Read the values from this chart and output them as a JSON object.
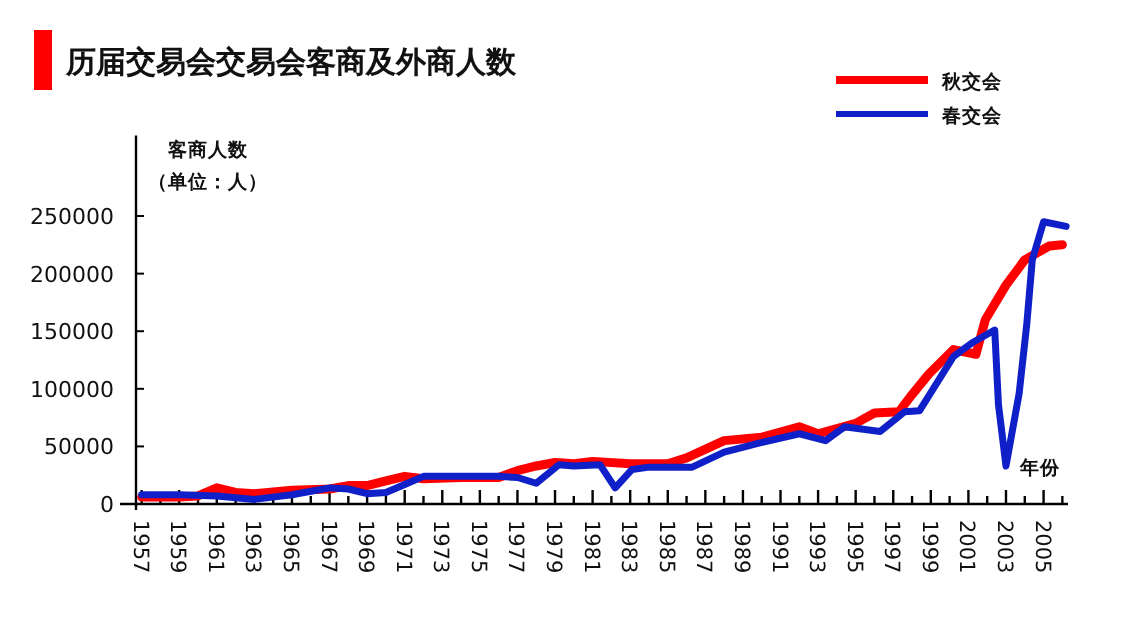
{
  "chart_data": {
    "type": "line",
    "title": "历届交易会交易会客商及外商人数",
    "xlabel": "年份",
    "ylabel": "客商人数",
    "annotations": [
      "（单位：人）"
    ],
    "xlim": [
      1956.7,
      2006.3
    ],
    "ylim": [
      0,
      320000
    ],
    "xticks": [
      {
        "value": 1957,
        "label": "1957"
      },
      {
        "value": 1958,
        "label": null
      },
      {
        "value": 1959,
        "label": "1959"
      },
      {
        "value": 1960,
        "label": null
      },
      {
        "value": 1961,
        "label": "1961"
      },
      {
        "value": 1962,
        "label": null
      },
      {
        "value": 1963,
        "label": "1963"
      },
      {
        "value": 1964,
        "label": null
      },
      {
        "value": 1965,
        "label": "1965"
      },
      {
        "value": 1966,
        "label": null
      },
      {
        "value": 1967,
        "label": "1967"
      },
      {
        "value": 1968,
        "label": null
      },
      {
        "value": 1969,
        "label": "1969"
      },
      {
        "value": 1970,
        "label": null
      },
      {
        "value": 1971,
        "label": "1971"
      },
      {
        "value": 1972,
        "label": null
      },
      {
        "value": 1973,
        "label": "1973"
      },
      {
        "value": 1974,
        "label": null
      },
      {
        "value": 1975,
        "label": "1975"
      },
      {
        "value": 1976,
        "label": null
      },
      {
        "value": 1977,
        "label": "1977"
      },
      {
        "value": 1978,
        "label": null
      },
      {
        "value": 1979,
        "label": "1979"
      },
      {
        "value": 1980,
        "label": null
      },
      {
        "value": 1981,
        "label": "1981"
      },
      {
        "value": 1982,
        "label": null
      },
      {
        "value": 1983,
        "label": "1983"
      },
      {
        "value": 1984,
        "label": null
      },
      {
        "value": 1985,
        "label": "1985"
      },
      {
        "value": 1986,
        "label": null
      },
      {
        "value": 1987,
        "label": "1987"
      },
      {
        "value": 1988,
        "label": null
      },
      {
        "value": 1989,
        "label": "1989"
      },
      {
        "value": 1990,
        "label": null
      },
      {
        "value": 1991,
        "label": "1991"
      },
      {
        "value": 1992,
        "label": null
      },
      {
        "value": 1993,
        "label": "1993"
      },
      {
        "value": 1994,
        "label": null
      },
      {
        "value": 1995,
        "label": "1995"
      },
      {
        "value": 1996,
        "label": null
      },
      {
        "value": 1997,
        "label": "1997"
      },
      {
        "value": 1998,
        "label": null
      },
      {
        "value": 1999,
        "label": "1999"
      },
      {
        "value": 2000,
        "label": null
      },
      {
        "value": 2001,
        "label": "2001"
      },
      {
        "value": 2002,
        "label": null
      },
      {
        "value": 2003,
        "label": "2003"
      },
      {
        "value": 2004,
        "label": null
      },
      {
        "value": 2005,
        "label": "2005"
      },
      {
        "value": 2006,
        "label": null
      }
    ],
    "yticks": [
      0,
      50000,
      100000,
      150000,
      200000,
      250000
    ],
    "legend": "top right",
    "grid": false,
    "marker": "none",
    "line_style": "solid",
    "series": [
      {
        "name": "秋交会",
        "color": "#ff0000",
        "x": [
          1957,
          1959,
          1960,
          1961,
          1962,
          1963,
          1965,
          1967,
          1968,
          1969,
          1970,
          1971,
          1972,
          1974,
          1976,
          1977,
          1978,
          1979,
          1980,
          1981,
          1983,
          1985,
          1986,
          1988,
          1990,
          1992,
          1993,
          1995,
          1996,
          1997.3,
          1998,
          1998.9,
          2000.2,
          2001.4,
          2001.9,
          2003,
          2004,
          2005.3,
          2006
        ],
        "values": [
          6000,
          6000,
          7000,
          14000,
          10000,
          9000,
          12000,
          13000,
          16000,
          16000,
          20000,
          24000,
          22000,
          23000,
          23000,
          29000,
          33000,
          36000,
          35000,
          37000,
          35000,
          35000,
          40000,
          55000,
          58000,
          67000,
          61000,
          70000,
          79000,
          80000,
          95000,
          113000,
          134000,
          130000,
          160000,
          190000,
          212000,
          224000,
          225000
        ]
      },
      {
        "name": "春交会",
        "color": "#1020c8",
        "x": [
          1957,
          1959,
          1961,
          1963,
          1965,
          1967,
          1968,
          1969,
          1970,
          1971,
          1972,
          1974,
          1976,
          1977,
          1978,
          1979.2,
          1980,
          1981.4,
          1982.2,
          1983.1,
          1984,
          1986.3,
          1988,
          1989.9,
          1992,
          1993.4,
          1994.4,
          1996.3,
          1997.6,
          1998.4,
          2000.2,
          2001.2,
          2002.4,
          2002.6,
          2003,
          2003.7,
          2004.1,
          2004.4,
          2005,
          2006.2
        ],
        "values": [
          8000,
          8000,
          7000,
          4000,
          8000,
          14000,
          13000,
          9000,
          10000,
          17000,
          24000,
          24000,
          24000,
          23000,
          18000,
          34000,
          33000,
          34000,
          14000,
          30000,
          32000,
          32000,
          45000,
          53000,
          61000,
          55000,
          67000,
          63000,
          80000,
          81000,
          128000,
          140000,
          151000,
          86000,
          33000,
          96000,
          155000,
          212000,
          245000,
          241000
        ]
      }
    ]
  }
}
